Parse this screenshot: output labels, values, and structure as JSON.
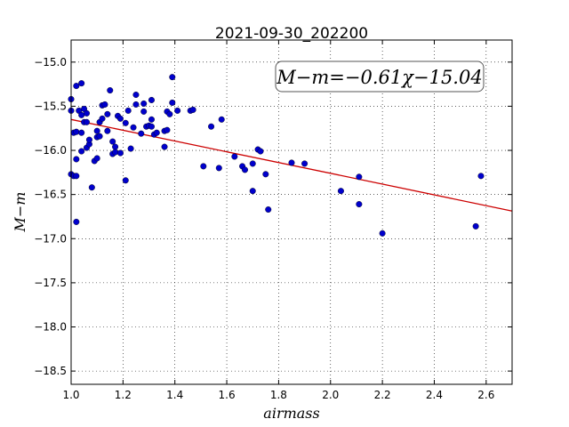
{
  "chart_data": {
    "type": "scatter",
    "title": "2021-09-30_202200",
    "xlabel": "airmass",
    "ylabel": "M−m",
    "xlim": [
      1.0,
      2.7
    ],
    "ylim": [
      -18.65,
      -14.75
    ],
    "y_inverted": true,
    "xticks": [
      "1.0",
      "1.2",
      "1.4",
      "1.6",
      "1.8",
      "2.0",
      "2.2",
      "2.4",
      "2.6"
    ],
    "yticks": [
      "−15.0",
      "−15.5",
      "−16.0",
      "−16.5",
      "−17.0",
      "−17.5",
      "−18.0",
      "−18.5"
    ],
    "grid": true,
    "annotation": "M−m=−0.61χ−15.04",
    "fit": {
      "slope": -0.61,
      "intercept": -15.04,
      "color": "#cc0000"
    },
    "marker_color": "#0000cc",
    "points": [
      [
        1.0,
        -15.55
      ],
      [
        1.0,
        -15.42
      ],
      [
        1.01,
        -15.8
      ],
      [
        1.0,
        -16.27
      ],
      [
        1.01,
        -16.29
      ],
      [
        1.02,
        -15.27
      ],
      [
        1.02,
        -15.79
      ],
      [
        1.03,
        -15.55
      ],
      [
        1.02,
        -16.1
      ],
      [
        1.02,
        -16.29
      ],
      [
        1.02,
        -16.81
      ],
      [
        1.04,
        -15.24
      ],
      [
        1.04,
        -15.6
      ],
      [
        1.05,
        -15.53
      ],
      [
        1.04,
        -15.8
      ],
      [
        1.05,
        -15.68
      ],
      [
        1.04,
        -16.01
      ],
      [
        1.06,
        -15.58
      ],
      [
        1.06,
        -15.68
      ],
      [
        1.06,
        -15.97
      ],
      [
        1.07,
        -15.93
      ],
      [
        1.07,
        -15.88
      ],
      [
        1.08,
        -16.42
      ],
      [
        1.09,
        -16.12
      ],
      [
        1.1,
        -15.85
      ],
      [
        1.1,
        -15.78
      ],
      [
        1.1,
        -16.09
      ],
      [
        1.11,
        -15.84
      ],
      [
        1.11,
        -15.68
      ],
      [
        1.12,
        -15.49
      ],
      [
        1.13,
        -15.48
      ],
      [
        1.12,
        -15.64
      ],
      [
        1.14,
        -15.59
      ],
      [
        1.14,
        -15.78
      ],
      [
        1.15,
        -15.32
      ],
      [
        1.16,
        -15.9
      ],
      [
        1.16,
        -16.04
      ],
      [
        1.17,
        -15.96
      ],
      [
        1.17,
        -16.02
      ],
      [
        1.18,
        -15.61
      ],
      [
        1.19,
        -15.64
      ],
      [
        1.19,
        -16.03
      ],
      [
        1.21,
        -15.69
      ],
      [
        1.21,
        -16.34
      ],
      [
        1.22,
        -15.55
      ],
      [
        1.23,
        -15.98
      ],
      [
        1.24,
        -15.74
      ],
      [
        1.25,
        -15.48
      ],
      [
        1.25,
        -15.37
      ],
      [
        1.27,
        -15.81
      ],
      [
        1.28,
        -15.47
      ],
      [
        1.28,
        -15.56
      ],
      [
        1.29,
        -15.73
      ],
      [
        1.3,
        -15.72
      ],
      [
        1.31,
        -15.43
      ],
      [
        1.31,
        -15.65
      ],
      [
        1.31,
        -15.73
      ],
      [
        1.32,
        -15.82
      ],
      [
        1.33,
        -15.8
      ],
      [
        1.36,
        -15.78
      ],
      [
        1.36,
        -15.96
      ],
      [
        1.37,
        -15.77
      ],
      [
        1.37,
        -15.56
      ],
      [
        1.38,
        -15.59
      ],
      [
        1.39,
        -15.17
      ],
      [
        1.39,
        -15.46
      ],
      [
        1.41,
        -15.55
      ],
      [
        1.46,
        -15.55
      ],
      [
        1.47,
        -15.54
      ],
      [
        1.51,
        -16.18
      ],
      [
        1.54,
        -15.73
      ],
      [
        1.57,
        -16.2
      ],
      [
        1.58,
        -15.65
      ],
      [
        1.63,
        -16.07
      ],
      [
        1.66,
        -16.18
      ],
      [
        1.67,
        -16.22
      ],
      [
        1.7,
        -16.15
      ],
      [
        1.7,
        -16.46
      ],
      [
        1.72,
        -15.99
      ],
      [
        1.73,
        -16.01
      ],
      [
        1.75,
        -16.27
      ],
      [
        1.76,
        -16.67
      ],
      [
        1.85,
        -16.14
      ],
      [
        1.9,
        -16.15
      ],
      [
        2.04,
        -16.46
      ],
      [
        2.11,
        -16.3
      ],
      [
        2.11,
        -16.61
      ],
      [
        2.2,
        -16.94
      ],
      [
        2.56,
        -16.86
      ],
      [
        2.58,
        -16.29
      ]
    ]
  }
}
